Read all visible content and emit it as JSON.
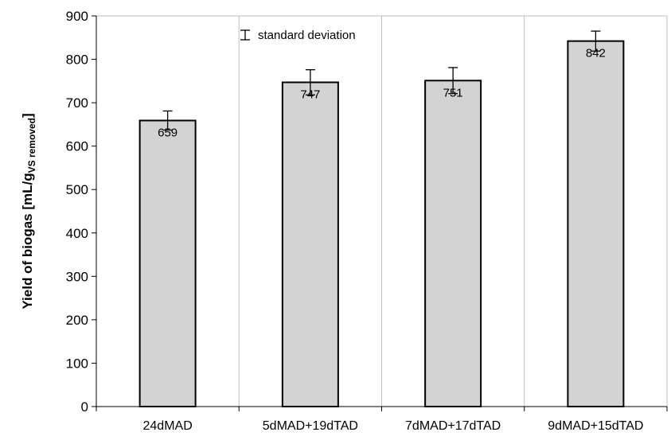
{
  "chart_data": {
    "type": "bar",
    "categories": [
      "24dMAD",
      "5dMAD+19dTAD",
      "7dMAD+17dTAD",
      "9dMAD+15dTAD"
    ],
    "values": [
      659,
      747,
      751,
      842
    ],
    "errors": [
      22,
      29,
      30,
      23
    ],
    "data_labels": [
      "659",
      "747",
      "751",
      "842"
    ],
    "ylabel": {
      "main": "Yield of biogas [mL/g",
      "subscript": "VS removed",
      "close": "]"
    },
    "xlabel": "",
    "ylim": [
      0,
      900
    ],
    "yticks": [
      0,
      100,
      200,
      300,
      400,
      500,
      600,
      700,
      800,
      900
    ],
    "ytick_labels": [
      "0",
      "100",
      "200",
      "300",
      "400",
      "500",
      "600",
      "700",
      "800",
      "900"
    ],
    "grid": "vertical",
    "legend": {
      "text": "standard deviation",
      "placement": "top"
    },
    "colors": {
      "bar_fill": "#d3d3d3",
      "bar_stroke": "#000000",
      "grid": "#bfbfbf",
      "axis": "#000000"
    }
  }
}
